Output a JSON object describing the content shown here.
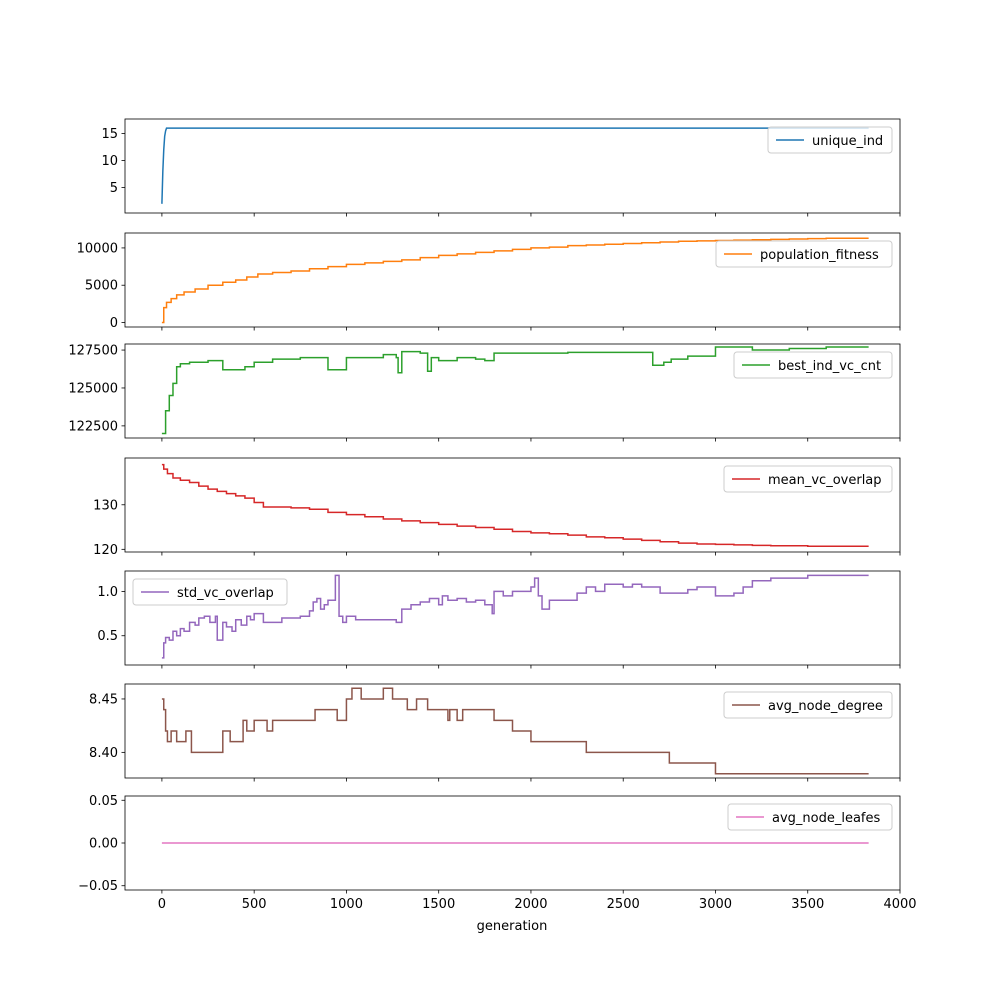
{
  "chart_data": {
    "type": "line",
    "layout": "stacked-subplots-shared-x",
    "xlabel": "generation",
    "xlim": [
      -200,
      4000
    ],
    "xticks": [
      0,
      500,
      1000,
      1500,
      2000,
      2500,
      3000,
      3500,
      4000
    ],
    "xtick_labels": [
      "0",
      "500",
      "1000",
      "1500",
      "2000",
      "2500",
      "3000",
      "3500",
      "4000"
    ],
    "grid": false,
    "panels": [
      {
        "name": "unique_ind",
        "color": "#1f77b4",
        "legend_position": "upper-right",
        "ylim": [
          0.3,
          17.7
        ],
        "yticks": [
          5,
          10,
          15
        ],
        "ytick_labels": [
          "5",
          "10",
          "15"
        ],
        "step": false,
        "x": [
          0,
          5,
          10,
          15,
          20,
          25,
          30,
          3830
        ],
        "y": [
          2,
          8,
          12,
          14.5,
          15.5,
          16,
          16,
          16
        ]
      },
      {
        "name": "population_fitness",
        "color": "#ff7f0e",
        "legend_position": "upper-right",
        "ylim": [
          -600,
          12000
        ],
        "yticks": [
          0,
          5000,
          10000
        ],
        "ytick_labels": [
          "0",
          "5000",
          "10000"
        ],
        "step": true,
        "x": [
          0,
          10,
          25,
          50,
          80,
          120,
          180,
          250,
          330,
          400,
          460,
          520,
          600,
          700,
          800,
          900,
          1000,
          1100,
          1200,
          1300,
          1400,
          1500,
          1600,
          1700,
          1800,
          1900,
          2000,
          2100,
          2200,
          2300,
          2400,
          2500,
          2600,
          2700,
          2800,
          2900,
          3000,
          3100,
          3200,
          3300,
          3400,
          3500,
          3600,
          3700,
          3830
        ],
        "y": [
          0,
          2000,
          2700,
          3200,
          3700,
          4100,
          4500,
          5000,
          5400,
          5700,
          6100,
          6500,
          6700,
          6900,
          7200,
          7500,
          7800,
          8000,
          8200,
          8400,
          8700,
          9000,
          9200,
          9400,
          9600,
          9800,
          10000,
          10100,
          10300,
          10400,
          10500,
          10600,
          10700,
          10800,
          10900,
          10950,
          11000,
          11050,
          11100,
          11150,
          11200,
          11250,
          11300,
          11300,
          11300
        ]
      },
      {
        "name": "best_ind_vc_cnt",
        "color": "#2ca02c",
        "legend_position": "upper-right",
        "ylim": [
          121700,
          127900
        ],
        "yticks": [
          122500,
          125000,
          127500
        ],
        "ytick_labels": [
          "122500",
          "125000",
          "127500"
        ],
        "step": true,
        "x": [
          0,
          20,
          40,
          60,
          80,
          100,
          150,
          200,
          250,
          330,
          450,
          500,
          600,
          750,
          850,
          900,
          1000,
          1100,
          1200,
          1270,
          1280,
          1300,
          1400,
          1440,
          1460,
          1500,
          1600,
          1700,
          1750,
          1800,
          2000,
          2200,
          2400,
          2600,
          2660,
          2720,
          2760,
          2800,
          2850,
          3000,
          3200,
          3400,
          3500,
          3600,
          3830
        ],
        "y": [
          122000,
          123500,
          124500,
          125300,
          126400,
          126600,
          126700,
          126700,
          126800,
          126200,
          126400,
          126700,
          126900,
          127000,
          127000,
          126200,
          127000,
          127000,
          127200,
          127000,
          126000,
          127400,
          127300,
          126100,
          127000,
          126800,
          127000,
          126900,
          126800,
          127300,
          127300,
          127350,
          127350,
          127350,
          126500,
          126700,
          126900,
          126900,
          127100,
          127700,
          127500,
          127600,
          127600,
          127700,
          127700
        ]
      },
      {
        "name": "mean_vc_overlap",
        "color": "#d62728",
        "legend_position": "upper-right",
        "ylim": [
          119.4,
          140.5
        ],
        "yticks": [
          120,
          130
        ],
        "ytick_labels": [
          "120",
          "130"
        ],
        "step": true,
        "x": [
          0,
          10,
          30,
          60,
          100,
          150,
          200,
          250,
          300,
          350,
          400,
          450,
          500,
          550,
          700,
          800,
          900,
          1000,
          1100,
          1200,
          1300,
          1400,
          1500,
          1600,
          1700,
          1800,
          1900,
          2000,
          2100,
          2200,
          2300,
          2400,
          2500,
          2600,
          2700,
          2800,
          2900,
          3000,
          3100,
          3200,
          3300,
          3400,
          3500,
          3600,
          3830
        ],
        "y": [
          139,
          138,
          137,
          136,
          135.5,
          135,
          134.2,
          133.5,
          133,
          132.5,
          132,
          131.5,
          130.5,
          129.5,
          129.3,
          129,
          128.3,
          127.8,
          127.3,
          126.8,
          126.4,
          126,
          125.6,
          125.2,
          124.9,
          124.5,
          124,
          123.7,
          123.5,
          123.2,
          122.8,
          122.6,
          122.3,
          122,
          121.7,
          121.4,
          121.2,
          121.1,
          121,
          120.9,
          120.8,
          120.8,
          120.7,
          120.7,
          120.7
        ]
      },
      {
        "name": "std_vc_overlap",
        "color": "#9467bd",
        "legend_position": "upper-left",
        "ylim": [
          0.17,
          1.23
        ],
        "yticks": [
          0.5,
          1.0
        ],
        "ytick_labels": [
          "0.5",
          "1.0"
        ],
        "step": true,
        "x": [
          0,
          10,
          20,
          40,
          60,
          80,
          100,
          120,
          150,
          180,
          200,
          230,
          260,
          290,
          300,
          330,
          350,
          380,
          400,
          430,
          460,
          480,
          500,
          550,
          600,
          650,
          700,
          750,
          800,
          820,
          840,
          860,
          880,
          900,
          940,
          960,
          980,
          1000,
          1050,
          1100,
          1200,
          1270,
          1300,
          1350,
          1400,
          1450,
          1500,
          1520,
          1550,
          1600,
          1650,
          1700,
          1750,
          1790,
          1800,
          1850,
          1900,
          2000,
          2020,
          2040,
          2060,
          2100,
          2200,
          2250,
          2300,
          2350,
          2400,
          2500,
          2550,
          2600,
          2700,
          2800,
          2850,
          2900,
          3000,
          3100,
          3150,
          3200,
          3300,
          3400,
          3500,
          3600,
          3830
        ],
        "y": [
          0.25,
          0.42,
          0.48,
          0.45,
          0.55,
          0.5,
          0.58,
          0.55,
          0.65,
          0.62,
          0.7,
          0.72,
          0.65,
          0.72,
          0.45,
          0.65,
          0.6,
          0.55,
          0.68,
          0.62,
          0.72,
          0.68,
          0.75,
          0.65,
          0.65,
          0.7,
          0.7,
          0.72,
          0.78,
          0.88,
          0.92,
          0.8,
          0.85,
          0.9,
          1.18,
          0.72,
          0.65,
          0.72,
          0.68,
          0.68,
          0.68,
          0.65,
          0.8,
          0.85,
          0.88,
          0.92,
          0.85,
          0.95,
          0.9,
          0.92,
          0.88,
          0.9,
          0.85,
          0.75,
          1.0,
          0.95,
          1.0,
          1.05,
          1.15,
          0.95,
          0.8,
          0.9,
          0.9,
          0.98,
          1.05,
          1.0,
          1.08,
          1.05,
          1.08,
          1.05,
          0.98,
          0.98,
          1.02,
          1.05,
          0.95,
          0.98,
          1.05,
          1.12,
          1.15,
          1.15,
          1.18,
          1.18,
          1.18
        ]
      },
      {
        "name": "avg_node_degree",
        "color": "#8c564b",
        "legend_position": "upper-right",
        "ylim": [
          8.376,
          8.464
        ],
        "yticks": [
          8.4,
          8.45
        ],
        "ytick_labels": [
          "8.40",
          "8.45"
        ],
        "step": true,
        "x": [
          0,
          10,
          20,
          30,
          50,
          80,
          100,
          130,
          160,
          330,
          370,
          400,
          440,
          460,
          480,
          500,
          560,
          570,
          600,
          830,
          900,
          950,
          1000,
          1030,
          1080,
          1170,
          1200,
          1250,
          1330,
          1380,
          1440,
          1500,
          1550,
          1560,
          1600,
          1630,
          1800,
          1900,
          2000,
          2300,
          2550,
          2700,
          2750,
          3000,
          3830
        ],
        "y": [
          8.45,
          8.44,
          8.42,
          8.41,
          8.42,
          8.41,
          8.41,
          8.42,
          8.4,
          8.42,
          8.41,
          8.41,
          8.43,
          8.42,
          8.42,
          8.43,
          8.43,
          8.42,
          8.43,
          8.44,
          8.44,
          8.43,
          8.45,
          8.46,
          8.45,
          8.45,
          8.46,
          8.45,
          8.44,
          8.45,
          8.44,
          8.44,
          8.43,
          8.44,
          8.43,
          8.44,
          8.43,
          8.42,
          8.41,
          8.4,
          8.4,
          8.4,
          8.39,
          8.38,
          8.38
        ]
      },
      {
        "name": "avg_node_leafes",
        "color": "#e377c2",
        "legend_position": "upper-right",
        "ylim": [
          -0.055,
          0.055
        ],
        "yticks": [
          -0.05,
          0.0,
          0.05
        ],
        "ytick_labels": [
          "−0.05",
          "0.00",
          "0.05"
        ],
        "step": false,
        "x": [
          0,
          3830
        ],
        "y": [
          0,
          0
        ]
      }
    ]
  }
}
